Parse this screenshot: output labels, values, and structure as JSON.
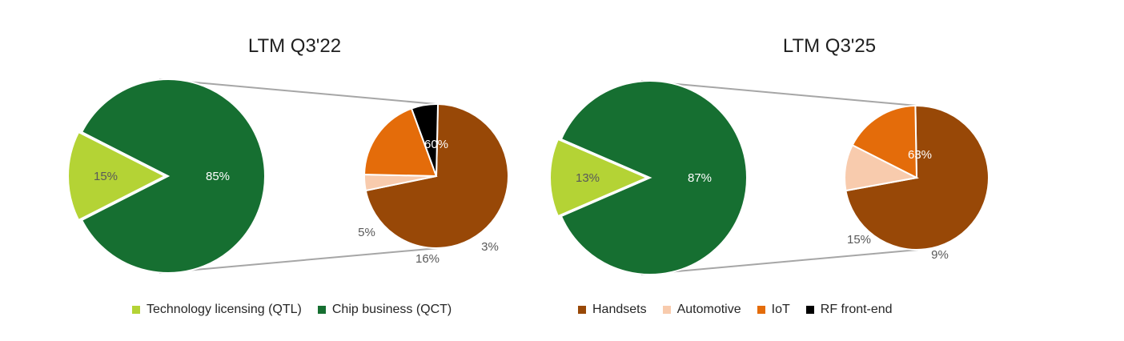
{
  "colors": {
    "qtl": "#b4d335",
    "qct": "#166f31",
    "handsets": "#984807",
    "automotive": "#f8cbad",
    "iot": "#e46c0a",
    "rf": "#000000",
    "connector": "#a6a6a6",
    "label_light": "#ffffff",
    "label_dark": "#595959"
  },
  "chart_data": [
    {
      "type": "pie",
      "title": "LTM Q3'22",
      "series": [
        {
          "name": "Technology licensing (QTL)",
          "value": 15,
          "label": "15%"
        },
        {
          "name": "Chip business (QCT)",
          "value": 85,
          "label": "85%"
        }
      ],
      "breakdown_of": "Chip business (QCT)",
      "breakdown": [
        {
          "name": "Handsets",
          "value": 60,
          "label": "60%"
        },
        {
          "name": "Automotive",
          "value": 3,
          "label": "3%"
        },
        {
          "name": "IoT",
          "value": 16,
          "label": "16%"
        },
        {
          "name": "RF front-end",
          "value": 5,
          "label": "5%"
        }
      ]
    },
    {
      "type": "pie",
      "title": "LTM Q3'25",
      "series": [
        {
          "name": "Technology licensing (QTL)",
          "value": 13,
          "label": "13%"
        },
        {
          "name": "Chip business (QCT)",
          "value": 87,
          "label": "87%"
        }
      ],
      "breakdown_of": "Chip business (QCT)",
      "breakdown": [
        {
          "name": "Handsets",
          "value": 63,
          "label": "63%"
        },
        {
          "name": "Automotive",
          "value": 9,
          "label": "9%"
        },
        {
          "name": "IoT",
          "value": 15,
          "label": "15%"
        }
      ]
    }
  ],
  "legend_left": [
    {
      "label": "Technology licensing (QTL)",
      "color": "#b4d335"
    },
    {
      "label": "Chip business (QCT)",
      "color": "#166f31"
    }
  ],
  "legend_right": [
    {
      "label": "Handsets",
      "color": "#984807"
    },
    {
      "label": "Automotive",
      "color": "#f8cbad"
    },
    {
      "label": "IoT",
      "color": "#e46c0a"
    },
    {
      "label": "RF front-end",
      "color": "#000000"
    }
  ]
}
